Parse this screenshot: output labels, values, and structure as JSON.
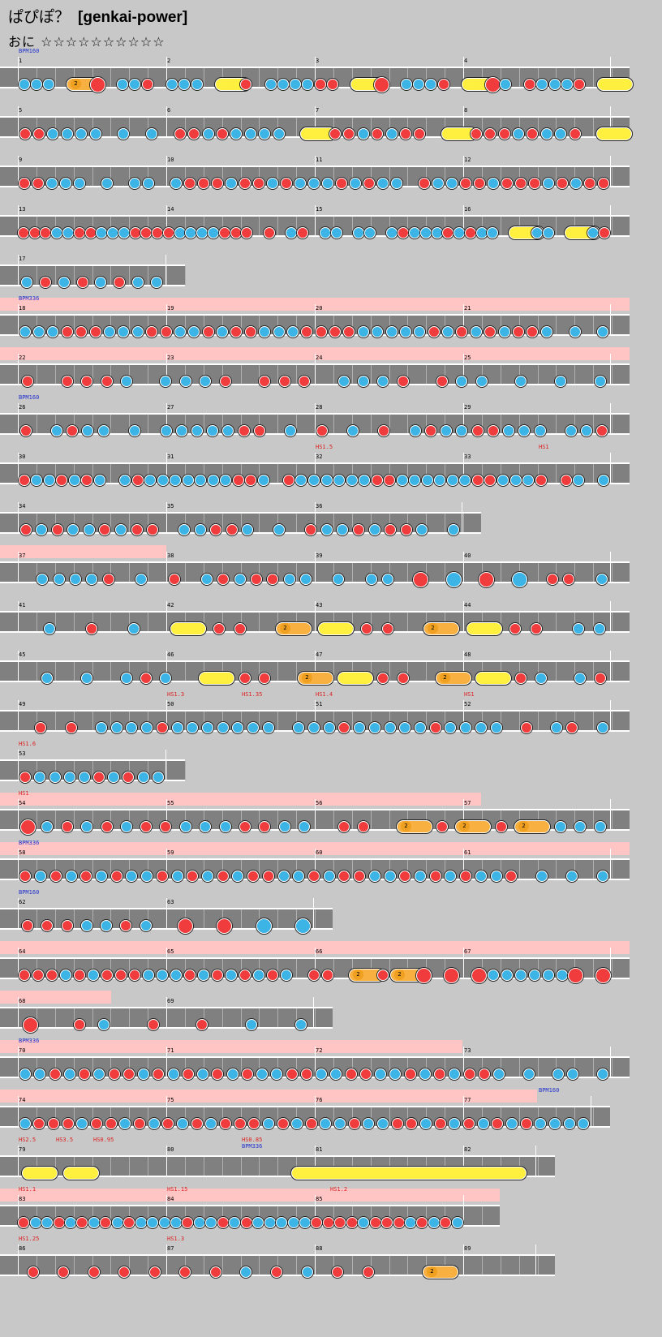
{
  "song": {
    "title": "ぱぴぽ？",
    "difficulty_tag": "[genkai-power]"
  },
  "course": {
    "name": "おに",
    "stars": "☆☆☆☆☆☆☆☆☆☆"
  },
  "colors": {
    "don": "#f03c3c",
    "ka": "#3cb4e6",
    "roll": "#fff040",
    "balloon": "#f8b040",
    "gogo_band": "#ffc4c4",
    "lane": "#808080"
  },
  "rows": [
    {
      "measures": [
        "1",
        "2",
        "3",
        "4"
      ],
      "labels": [
        {
          "t": "BPM160",
          "k": "bpm",
          "m": 0
        }
      ],
      "pattern": "kkk.B.D.kkd.kkk.R.d.kkkkdd.R.D.kkkd.R.Dk.dkkkd.R"
    },
    {
      "measures": [
        "5",
        "6",
        "7",
        "8"
      ],
      "labels": [],
      "pattern": "ddkkkk.k.k.ddkdkkkk.R.ddkdkdd.R.dddkdkkd.R"
    },
    {
      "measures": [
        "9",
        "10",
        "11",
        "12"
      ],
      "labels": [],
      "pattern": "ddkkk.k.kk.kdddkddkdkkkdkdkk.dkkddkdddkdkdd"
    },
    {
      "measures": [
        "13",
        "14",
        "15",
        "16"
      ],
      "labels": [],
      "pattern": "dddkkddkkkddddkkkkddd.d.kd.kk.kk.kdkkkdkdkk.R.kk.R.kd"
    },
    {
      "measures": [
        "17"
      ],
      "short": 228,
      "labels": [],
      "pattern": "kdkdkdkk"
    },
    {
      "measures": [
        "18",
        "19",
        "20",
        "21"
      ],
      "gogo": [
        0,
        776
      ],
      "labels": [
        {
          "t": "BPM336",
          "k": "bpm",
          "m": 0
        }
      ],
      "pattern": "kkkdddkkkddkkdkddkkkddddkkkkkdkdkdkddk.k.k"
    },
    {
      "measures": [
        "22",
        "23",
        "24",
        "25"
      ],
      "gogo": [
        0,
        776
      ],
      "labels": [],
      "pattern": "d.dddk.kkkd.ddd.kkkd.dkk.k.k.k"
    },
    {
      "measures": [
        "26",
        "27",
        "28",
        "29"
      ],
      "labels": [
        {
          "t": "BPM160",
          "k": "bpm",
          "m": 0
        }
      ],
      "pattern": "d.kdkk.k.kkkkkdd.k.d.k.d.kdkkddkkk.kkd"
    },
    {
      "measures": [
        "30",
        "31",
        "32",
        "33"
      ],
      "labels": [
        {
          "t": "HS1.5",
          "k": "hs",
          "m": 2
        },
        {
          "t": "HS1",
          "k": "hs",
          "m": 3.5
        }
      ],
      "pattern": "dkkdkdk.kdkkkkkkkddk.dkkkkkkddkkkkkkddkkkd.dk.k"
    },
    {
      "measures": [
        "34",
        "35",
        "36"
      ],
      "short": 593,
      "labels": [],
      "pattern": "dkdkkdkdd.kkddk.k.dkkdkddk.k"
    },
    {
      "measures": [
        "37",
        "38",
        "39",
        "40"
      ],
      "gogo": [
        0,
        205
      ],
      "labels": [],
      "pattern": ".kkkkd.k.d.kdkddkk.k.kk.D.K.D.K.dd.k"
    },
    {
      "measures": [
        "41",
        "42",
        "43",
        "44"
      ],
      "labels": [],
      "pattern": ".k.d.k.R.dd.B.R.dd.B.R.dd.kk"
    },
    {
      "measures": [
        "45",
        "46",
        "47",
        "48"
      ],
      "labels": [],
      "pattern": ".k.k.kdk.R.dd.B.R.dd.B.R.dk.kd"
    },
    {
      "measures": [
        "49",
        "50",
        "51",
        "52"
      ],
      "labels": [
        {
          "t": "HS1.3",
          "k": "hs",
          "m": 1
        },
        {
          "t": "HS1.35",
          "k": "hs",
          "m": 1.5
        },
        {
          "t": "HS1.4",
          "k": "hs",
          "m": 2
        },
        {
          "t": "HS1",
          "k": "hs",
          "m": 3
        }
      ],
      "pattern": ".d.d.kkkkdkkkkkkk.kkkdkkkkkdkkkk.d.kd.k"
    },
    {
      "measures": [
        "53"
      ],
      "short": 228,
      "labels": [
        {
          "t": "HS1.6",
          "k": "hs",
          "m": 0
        }
      ],
      "pattern": "dkkkkdkdkk"
    },
    {
      "measures": [
        "54",
        "55",
        "56",
        "57"
      ],
      "gogo": [
        0,
        593
      ],
      "labels": [
        {
          "t": "HS1",
          "k": "hs",
          "m": 0
        }
      ],
      "pattern": "Dkdkdkddkkkddkk.dd.B.dB.dB.kkk"
    },
    {
      "measures": [
        "58",
        "59",
        "60",
        "61"
      ],
      "gogo": [
        0,
        776
      ],
      "labels": [
        {
          "t": "BPM336",
          "k": "bpm",
          "m": 0
        }
      ],
      "pattern": "dkdkdkdkkdkdkdkddkkdkddkkdkdkdkkd.k.k.k"
    },
    {
      "measures": [
        "62",
        "63"
      ],
      "short": 410,
      "labels": [
        {
          "t": "BPM160",
          "k": "bpm",
          "m": 0
        }
      ],
      "pattern": "dddkkdk.D.D.K.K"
    },
    {
      "measures": [
        "64",
        "65",
        "66",
        "67"
      ],
      "gogo": [
        0,
        776
      ],
      "labels": [],
      "pattern": "dddkdkdddkkkdkdkdkdk.dd.B.dB.D.D.DkkkkkkD.D"
    },
    {
      "measures": [
        "68",
        "69"
      ],
      "short": 410,
      "gogo": [
        0,
        137
      ],
      "labels": [],
      "pattern": "D.dk.d.d.k.k"
    },
    {
      "measures": [
        "70",
        "71",
        "72",
        "73"
      ],
      "gogo": [
        0,
        570
      ],
      "labels": [
        {
          "t": "BPM336",
          "k": "bpm",
          "m": 0
        }
      ],
      "pattern": "kkdkdkddkdkdkdkdkkddkkddkkdkdkddk.k.kk.k"
    },
    {
      "measures": [
        "74",
        "75",
        "76",
        "77"
      ],
      "gogo": [
        0,
        662
      ],
      "short": 752,
      "labels": [
        {
          "t": "BPM160",
          "k": "bpm",
          "m": 3.5
        }
      ],
      "pattern": "kdddkddkdkdkdkdddkdkdkkdkkddkdkdkdkdkkkk"
    },
    {
      "measures": [
        "79",
        "80",
        "81",
        "82"
      ],
      "short": 684,
      "labels": [
        {
          "t": "HS2.5",
          "k": "hs",
          "m": 0
        },
        {
          "t": "HS3.5",
          "k": "hs",
          "m": 0.25
        },
        {
          "t": "HS0.95",
          "k": "hs",
          "m": 0.5
        },
        {
          "t": "HS0.85",
          "k": "hs",
          "m": 1.5
        },
        {
          "t": "BPM336",
          "k": "bpm",
          "m": 1.5
        }
      ],
      "pattern": "R.R..........RRRRRRRRRRRR"
    },
    {
      "measures": [
        "83",
        "84",
        "85"
      ],
      "short": 616,
      "gogo": [
        0,
        616
      ],
      "labels": [
        {
          "t": "HS1.1",
          "k": "hs",
          "m": 0
        },
        {
          "t": "HS1.15",
          "k": "hs",
          "m": 1
        },
        {
          "t": "HS1.2",
          "k": "hs",
          "m": 2.1
        }
      ],
      "pattern": "dkkdkdkdkdkkkkdkkdkdkkkkkddddkdddkdkdk"
    },
    {
      "measures": [
        "86",
        "87",
        "88",
        "89"
      ],
      "short": 684,
      "labels": [
        {
          "t": "HS1.25",
          "k": "hs",
          "m": 0
        },
        {
          "t": "HS1.3",
          "k": "hs",
          "m": 1
        }
      ],
      "pattern": "dddddddkdkdd.B..."
    }
  ]
}
